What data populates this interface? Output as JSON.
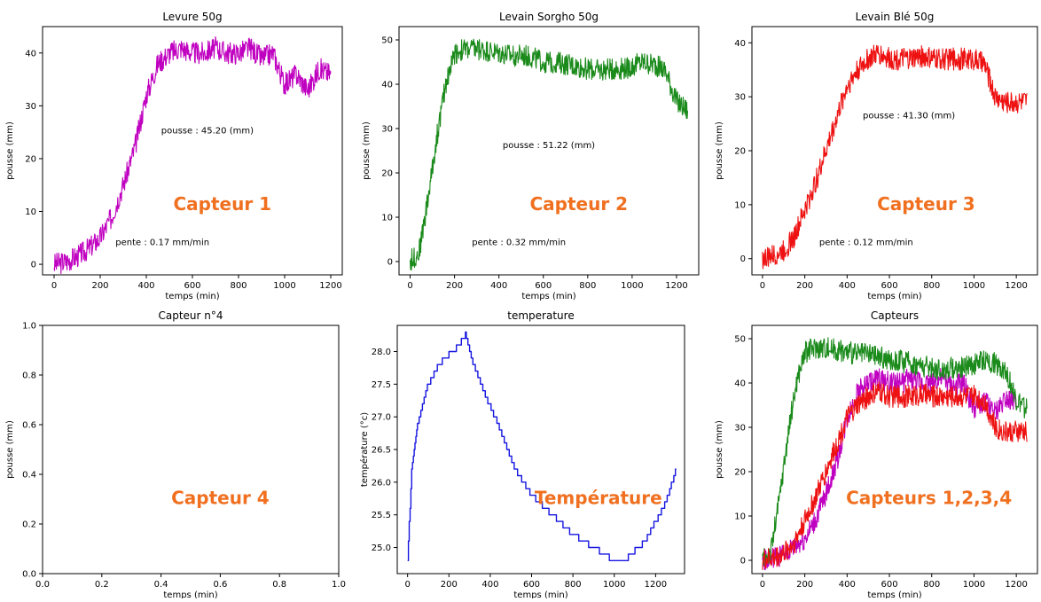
{
  "colors": {
    "magenta": "#c000c0",
    "green": "#1a8a1a",
    "red": "#ee1111",
    "blue": "#1515e0",
    "overlay_orange": "#f07020"
  },
  "chart_data": [
    {
      "type": "line",
      "title": "Levure 50g",
      "xlabel": "temps (min)",
      "ylabel": "pousse (mm)",
      "xlim": [
        -50,
        1250
      ],
      "ylim": [
        -2,
        45
      ],
      "xticks": [
        0,
        200,
        400,
        600,
        800,
        1000,
        1200
      ],
      "yticks": [
        0,
        10,
        20,
        30,
        40
      ],
      "series": [
        {
          "color": "#c000c0",
          "x": [
            0,
            50,
            100,
            150,
            200,
            250,
            300,
            350,
            400,
            450,
            500,
            550,
            600,
            650,
            700,
            750,
            800,
            850,
            900,
            950,
            1000,
            1050,
            1100,
            1150,
            1200
          ],
          "y": [
            0,
            0.5,
            1.5,
            3,
            5,
            9,
            15,
            22,
            32,
            38,
            40,
            41,
            40,
            40,
            41,
            40,
            40,
            41,
            39,
            40,
            34,
            36,
            33,
            37,
            36
          ]
        }
      ],
      "annotations": [
        "pousse : 45.20 (mm)",
        "pente : 0.17 mm/min"
      ],
      "overlay_label": "Capteur 1"
    },
    {
      "type": "line",
      "title": "Levain Sorgho 50g",
      "xlabel": "temps (min)",
      "ylabel": "pousse (mm)",
      "xlim": [
        -50,
        1300
      ],
      "ylim": [
        -3,
        53
      ],
      "xticks": [
        0,
        200,
        400,
        600,
        800,
        1000,
        1200
      ],
      "yticks": [
        0,
        10,
        20,
        30,
        40,
        50
      ],
      "series": [
        {
          "color": "#1a8a1a",
          "x": [
            0,
            40,
            80,
            120,
            160,
            200,
            250,
            300,
            350,
            400,
            450,
            500,
            550,
            600,
            650,
            700,
            750,
            800,
            850,
            900,
            950,
            1000,
            1050,
            1100,
            1150,
            1200,
            1250
          ],
          "y": [
            0,
            2,
            14,
            28,
            40,
            47,
            48,
            48,
            47.5,
            47,
            46.5,
            46.5,
            46,
            45,
            45,
            44.5,
            44,
            43.5,
            43,
            43.5,
            43.5,
            44,
            45,
            44.5,
            43,
            36,
            34
          ]
        }
      ],
      "annotations": [
        "pousse : 51.22 (mm)",
        "pente : 0.32 mm/min"
      ],
      "overlay_label": "Capteur 2"
    },
    {
      "type": "line",
      "title": "Levain Blé 50g",
      "xlabel": "temps (min)",
      "ylabel": "pousse (mm)",
      "xlim": [
        -50,
        1300
      ],
      "ylim": [
        -3,
        43
      ],
      "xticks": [
        0,
        200,
        400,
        600,
        800,
        1000,
        1200
      ],
      "yticks": [
        0,
        10,
        20,
        30,
        40
      ],
      "series": [
        {
          "color": "#ee1111",
          "x": [
            0,
            50,
            100,
            150,
            200,
            250,
            300,
            350,
            400,
            450,
            500,
            550,
            600,
            650,
            700,
            750,
            800,
            850,
            900,
            950,
            1000,
            1050,
            1100,
            1150,
            1200,
            1250
          ],
          "y": [
            0,
            0.5,
            1.5,
            4,
            9,
            14,
            20,
            26,
            32,
            35,
            37,
            38,
            37,
            37,
            37,
            37.5,
            37,
            37,
            37,
            37,
            37,
            36,
            30,
            29,
            29,
            29
          ]
        }
      ],
      "annotations": [
        "pousse : 41.30 (mm)",
        "pente : 0.12 mm/min"
      ],
      "overlay_label": "Capteur 3"
    },
    {
      "type": "line",
      "title": "Capteur n°4",
      "xlabel": "temps (min)",
      "ylabel": "pousse (mm)",
      "xlim": [
        0,
        1
      ],
      "ylim": [
        0,
        1
      ],
      "xticks": [
        0.0,
        0.2,
        0.4,
        0.6,
        0.8,
        1.0
      ],
      "yticks": [
        0.0,
        0.2,
        0.4,
        0.6,
        0.8,
        1.0
      ],
      "xtick_labels": [
        "0.0",
        "0.2",
        "0.4",
        "0.6",
        "0.8",
        "1.0"
      ],
      "ytick_labels": [
        "0.0",
        "0.2",
        "0.4",
        "0.6",
        "0.8",
        "1.0"
      ],
      "series": [],
      "annotations": [],
      "overlay_label": "Capteur 4"
    },
    {
      "type": "line",
      "title": "temperature",
      "xlabel": "temps (min)",
      "ylabel": "température  (°c)",
      "xlim": [
        -50,
        1340
      ],
      "ylim": [
        24.6,
        28.4
      ],
      "xticks": [
        0,
        200,
        400,
        600,
        800,
        1000,
        1200
      ],
      "yticks": [
        25.0,
        25.5,
        26.0,
        26.5,
        27.0,
        27.5,
        28.0
      ],
      "ytick_labels": [
        "25.0",
        "25.5",
        "26.0",
        "26.5",
        "27.0",
        "27.5",
        "28.0"
      ],
      "step": true,
      "series": [
        {
          "color": "#1515e0",
          "x": [
            0,
            20,
            50,
            100,
            150,
            200,
            250,
            280,
            320,
            380,
            450,
            520,
            600,
            700,
            800,
            900,
            1000,
            1050,
            1100,
            1150,
            1200,
            1250,
            1300
          ],
          "y": [
            24.8,
            26.2,
            26.9,
            27.5,
            27.8,
            27.95,
            28.1,
            28.25,
            27.8,
            27.3,
            26.8,
            26.2,
            25.8,
            25.5,
            25.2,
            25.0,
            24.8,
            24.8,
            24.95,
            25.1,
            25.4,
            25.7,
            26.2
          ]
        }
      ],
      "annotations": [],
      "overlay_label": "Température"
    },
    {
      "type": "line",
      "title": "Capteurs",
      "xlabel": "temps (min)",
      "ylabel": "pousse (mm)",
      "xlim": [
        -50,
        1300
      ],
      "ylim": [
        -3,
        53
      ],
      "xticks": [
        0,
        200,
        400,
        600,
        800,
        1000,
        1200
      ],
      "yticks": [
        0,
        10,
        20,
        30,
        40,
        50
      ],
      "series": [
        {
          "color": "#c000c0",
          "x": [
            0,
            50,
            100,
            150,
            200,
            250,
            300,
            350,
            400,
            450,
            500,
            550,
            600,
            650,
            700,
            750,
            800,
            850,
            900,
            950,
            1000,
            1050,
            1100,
            1150,
            1200
          ],
          "y": [
            0,
            0.5,
            1.5,
            3,
            5,
            9,
            15,
            22,
            32,
            38,
            40,
            41,
            40,
            40,
            41,
            40,
            40,
            41,
            39,
            40,
            34,
            36,
            33,
            37,
            36
          ]
        },
        {
          "color": "#1a8a1a",
          "x": [
            0,
            40,
            80,
            120,
            160,
            200,
            250,
            300,
            350,
            400,
            450,
            500,
            550,
            600,
            650,
            700,
            750,
            800,
            850,
            900,
            950,
            1000,
            1050,
            1100,
            1150,
            1200,
            1250
          ],
          "y": [
            0,
            2,
            14,
            28,
            40,
            47,
            48,
            48,
            47.5,
            47,
            46.5,
            46.5,
            46,
            45,
            45,
            44.5,
            44,
            43.5,
            43,
            43.5,
            43.5,
            44,
            45,
            44.5,
            43,
            36,
            34
          ]
        },
        {
          "color": "#ee1111",
          "x": [
            0,
            50,
            100,
            150,
            200,
            250,
            300,
            350,
            400,
            450,
            500,
            550,
            600,
            650,
            700,
            750,
            800,
            850,
            900,
            950,
            1000,
            1050,
            1100,
            1150,
            1200,
            1250
          ],
          "y": [
            0,
            0.5,
            1.5,
            4,
            9,
            14,
            20,
            26,
            32,
            35,
            37,
            38,
            37,
            37,
            37,
            37.5,
            37,
            37,
            37,
            37,
            37,
            36,
            30,
            29,
            29,
            29
          ]
        }
      ],
      "annotations": [],
      "overlay_label": "Capteurs 1,2,3,4"
    }
  ]
}
